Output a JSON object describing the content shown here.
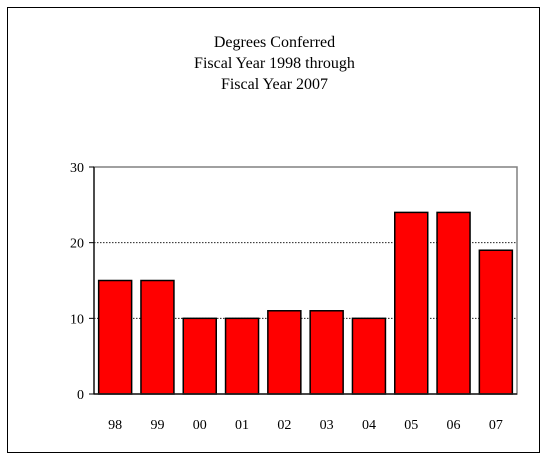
{
  "chart_data": {
    "type": "bar",
    "title_lines": [
      "Degrees Conferred",
      "Fiscal Year 1998 through",
      "Fiscal Year 2007"
    ],
    "categories": [
      "98",
      "99",
      "00",
      "01",
      "02",
      "03",
      "04",
      "05",
      "06",
      "07"
    ],
    "values": [
      15,
      15,
      10,
      10,
      11,
      11,
      10,
      24,
      24,
      19
    ],
    "yticks": [
      "0",
      "10",
      "20",
      "30"
    ],
    "ylim": [
      0,
      30
    ],
    "grid": true,
    "legend": "none",
    "bar_color": "#ff0000",
    "bar_edge_color": "#000000"
  }
}
